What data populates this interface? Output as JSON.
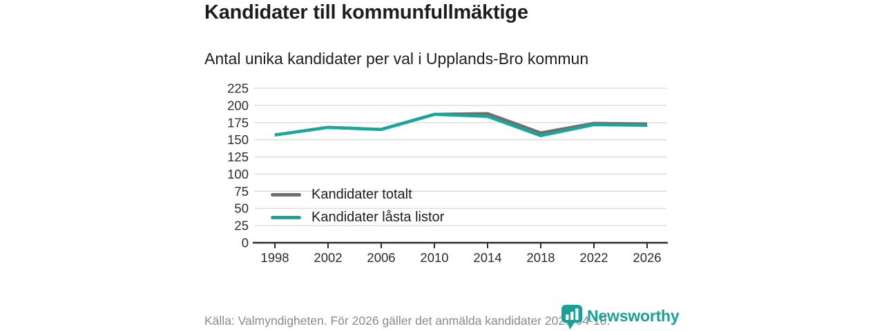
{
  "title": "Kandidater till kommunfullmäktige",
  "subtitle": "Antal unika kandidater per val i Upplands-Bro kommun",
  "footer": {
    "source": "Källa: Valmyndigheten. För 2026 gäller det anmälda kandidater 2026-04-10.",
    "brand": "Newsworthy"
  },
  "colors": {
    "accent_teal": "#18a79d",
    "brand_teal": "#1aa096",
    "series_total_gray": "#6f6f6f",
    "grid": "#d9d9d9",
    "axis": "#2b2b2b",
    "text_dark": "#1d1d1d",
    "text_muted": "#8a8a8a"
  },
  "chart_data": {
    "type": "line",
    "title": "Kandidater till kommunfullmäktige",
    "subtitle": "Antal unika kandidater per val i Upplands-Bro kommun",
    "x": [
      1998,
      2002,
      2006,
      2010,
      2014,
      2018,
      2022,
      2026
    ],
    "series": [
      {
        "name": "Kandidater totalt",
        "color": "#6f6f6f",
        "values": [
          157,
          168,
          165,
          187,
          188,
          160,
          174,
          173
        ]
      },
      {
        "name": "Kandidater låsta listor",
        "color": "#18a79d",
        "values": [
          157,
          168,
          165,
          187,
          184,
          156,
          172,
          171
        ]
      }
    ],
    "ylim": [
      0,
      225
    ],
    "yticks": [
      0,
      25,
      50,
      75,
      100,
      125,
      150,
      175,
      200,
      225
    ],
    "xlabel": "",
    "ylabel": "",
    "grid": "horizontal",
    "legend_position": "inside-left"
  }
}
